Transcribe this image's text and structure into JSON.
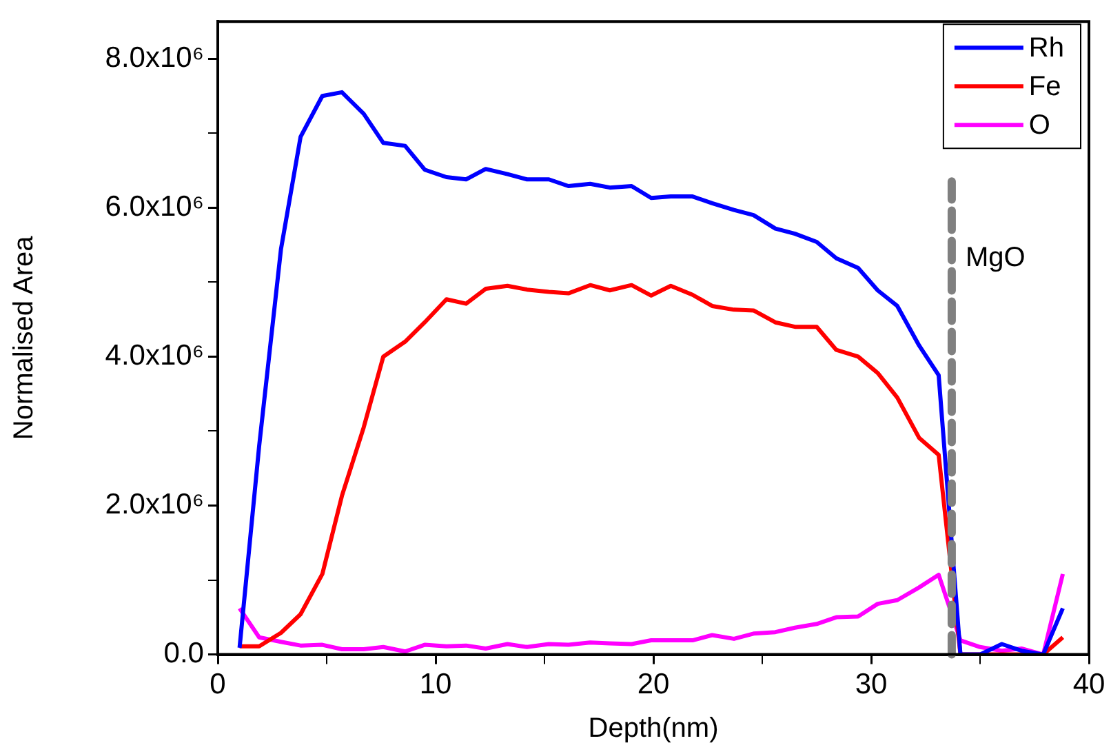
{
  "chart_data": {
    "type": "line",
    "xlabel": "Depth(nm)",
    "ylabel": "Normalised Area",
    "x": [
      1.0,
      1.9,
      2.9,
      3.8,
      4.8,
      5.7,
      6.7,
      7.6,
      8.6,
      9.5,
      10.5,
      11.4,
      12.3,
      13.3,
      14.2,
      15.2,
      16.1,
      17.1,
      18.0,
      19.0,
      19.9,
      20.8,
      21.8,
      22.7,
      23.7,
      24.6,
      25.6,
      26.5,
      27.5,
      28.4,
      29.4,
      30.3,
      31.2,
      32.2,
      33.1,
      34.1,
      35.0,
      36.0,
      36.9,
      37.9,
      38.8
    ],
    "series": [
      {
        "name": "Rh",
        "color": "#0000ff",
        "values": [
          90000,
          2800000,
          5440000,
          6950000,
          7500000,
          7550000,
          7260000,
          6870000,
          6830000,
          6510000,
          6410000,
          6380000,
          6520000,
          6450000,
          6380000,
          6380000,
          6290000,
          6320000,
          6270000,
          6290000,
          6130000,
          6150000,
          6150000,
          6060000,
          5970000,
          5900000,
          5720000,
          5650000,
          5540000,
          5320000,
          5190000,
          4890000,
          4680000,
          4150000,
          3750000,
          0,
          0,
          140000,
          50000,
          0,
          620000
        ]
      },
      {
        "name": "Fe",
        "color": "#ff0000",
        "values": [
          110000,
          110000,
          290000,
          540000,
          1080000,
          2130000,
          3050000,
          4000000,
          4200000,
          4460000,
          4770000,
          4710000,
          4910000,
          4950000,
          4900000,
          4870000,
          4850000,
          4960000,
          4890000,
          4960000,
          4820000,
          4950000,
          4830000,
          4680000,
          4630000,
          4620000,
          4460000,
          4400000,
          4400000,
          4090000,
          4000000,
          3780000,
          3450000,
          2910000,
          2680000,
          0,
          0,
          0,
          0,
          0,
          230000
        ]
      },
      {
        "name": "O",
        "color": "#ff00ff",
        "values": [
          620000,
          230000,
          170000,
          120000,
          130000,
          70000,
          70000,
          100000,
          40000,
          130000,
          110000,
          120000,
          80000,
          140000,
          100000,
          140000,
          130000,
          160000,
          150000,
          140000,
          190000,
          190000,
          190000,
          260000,
          210000,
          280000,
          300000,
          360000,
          410000,
          500000,
          510000,
          680000,
          730000,
          900000,
          1070000,
          190000,
          100000,
          50000,
          80000,
          0,
          1080000
        ]
      }
    ],
    "xlim": [
      0,
      40
    ],
    "xticks": [
      0,
      {
        "value": 5,
        "label": null
      },
      10,
      {
        "value": 15,
        "label": null
      },
      20,
      {
        "value": 25,
        "label": null
      },
      30,
      {
        "value": 35,
        "label": null
      },
      40
    ],
    "ylim": [
      0,
      8500000
    ],
    "yticks": [
      {
        "value": 0,
        "label": "0.0"
      },
      {
        "value": 1000000,
        "label": null
      },
      {
        "value": 2000000,
        "label": "2.0x10⁶"
      },
      {
        "value": 3000000,
        "label": null
      },
      {
        "value": 4000000,
        "label": "4.0x10⁶"
      },
      {
        "value": 5000000,
        "label": null
      },
      {
        "value": 6000000,
        "label": "6.0x10⁶"
      },
      {
        "value": 7000000,
        "label": null
      },
      {
        "value": 8000000,
        "label": "8.0x10⁶"
      }
    ],
    "ref_lines": [
      {
        "axis": "x",
        "value": 33.7,
        "label": "MgO",
        "color": "#808080",
        "line_style": "dashed"
      }
    ],
    "grid": false,
    "legend": "top right",
    "marker": "none",
    "line_style": "solid"
  }
}
